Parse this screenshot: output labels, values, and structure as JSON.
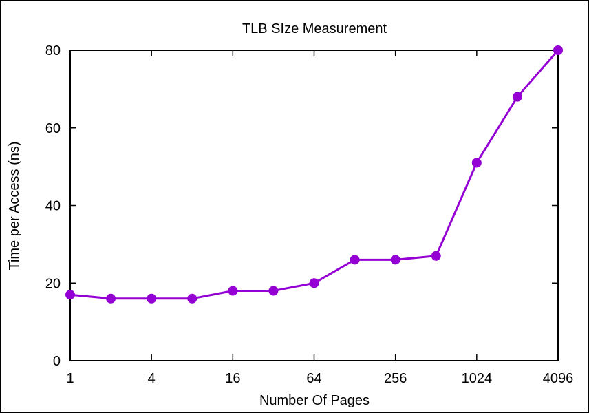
{
  "chart_data": {
    "type": "line",
    "title": "TLB SIze Measurement",
    "xlabel": "Number Of Pages",
    "ylabel": "Time per Access (ns)",
    "x_scale": "log2",
    "xlim": [
      1,
      4096
    ],
    "ylim": [
      0,
      80
    ],
    "x_ticks": [
      "1",
      "4",
      "16",
      "64",
      "256",
      "1024",
      "4096"
    ],
    "y_ticks": [
      "0",
      "20",
      "40",
      "60",
      "80"
    ],
    "grid": false,
    "legend": "none",
    "series": [
      {
        "color": "#9400d3",
        "x": [
          1,
          2,
          4,
          8,
          16,
          32,
          64,
          128,
          256,
          512,
          1024,
          2048,
          4096
        ],
        "y": [
          17,
          16,
          16,
          16,
          18,
          18,
          20,
          26,
          26,
          27,
          51,
          68,
          80
        ]
      }
    ]
  }
}
